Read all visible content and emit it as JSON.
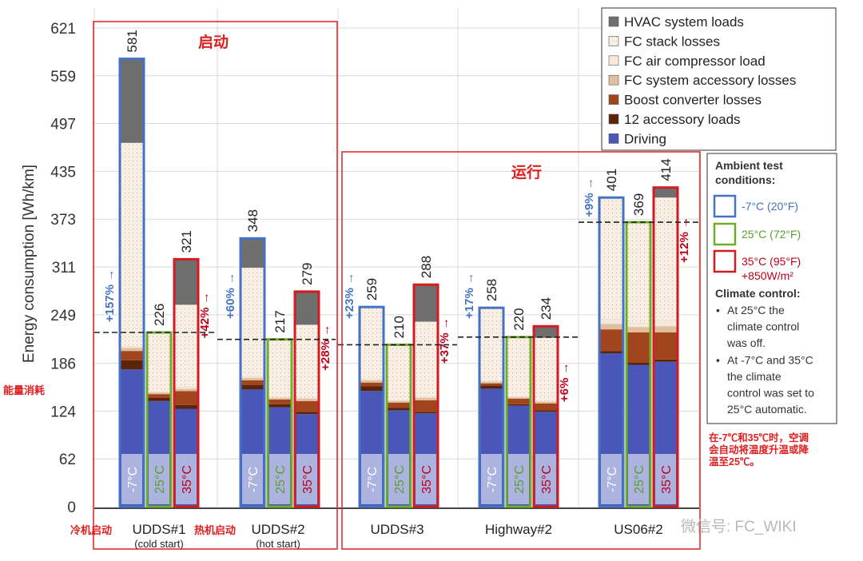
{
  "chart_data": {
    "type": "bar",
    "stacked": true,
    "ylabel": "Energy consumption [Wh/km]",
    "y_ticks": [
      0,
      62,
      124,
      186,
      249,
      311,
      373,
      435,
      497,
      559,
      621
    ],
    "ylim": [
      0,
      621
    ],
    "groups": [
      {
        "name": "UDDS#1",
        "sub": "(cold start)",
        "pre_label": "冷机启动"
      },
      {
        "name": "UDDS#2",
        "sub": "(hot start)",
        "pre_label": "热机启动"
      },
      {
        "name": "UDDS#3",
        "sub": "",
        "pre_label": ""
      },
      {
        "name": "Highway#2",
        "sub": "",
        "pre_label": ""
      },
      {
        "name": "US06#2",
        "sub": "",
        "pre_label": ""
      }
    ],
    "conditions": [
      {
        "key": "c",
        "tag": "-7°C",
        "border": "#4472c4",
        "tag_color": "#ffffff"
      },
      {
        "key": "w",
        "tag": "25°C",
        "border": "#70ad2b",
        "tag_color": "#5aa02c"
      },
      {
        "key": "h",
        "tag": "35°C",
        "border": "#d41b22",
        "tag_color": "#c0001b"
      }
    ],
    "series": [
      {
        "name": "Driving",
        "color": "#4a57b8"
      },
      {
        "name": "12 accessory loads",
        "color": "#5a2409"
      },
      {
        "name": "Boost converter losses",
        "color": "#a0451e"
      },
      {
        "name": "FC system accessory losses",
        "color": "#dfbf9e"
      },
      {
        "name": "FC air compressor load",
        "color": "#f6e9dc"
      },
      {
        "name": "FC stack losses",
        "color": "#f8efe6"
      },
      {
        "name": "HVAC system loads",
        "color": "#6e6e6e"
      }
    ],
    "bars": [
      {
        "group": 0,
        "cond": 0,
        "total": "581",
        "pct": "+157%",
        "values": [
          178,
          12,
          12,
          4,
          2,
          264,
          109
        ]
      },
      {
        "group": 0,
        "cond": 1,
        "total": "226",
        "pct": "",
        "values": [
          137,
          4,
          5,
          2,
          1,
          77,
          0
        ]
      },
      {
        "group": 0,
        "cond": 2,
        "total": "321",
        "pct": "+42%",
        "values": [
          127,
          5,
          18,
          3,
          2,
          107,
          59
        ]
      },
      {
        "group": 1,
        "cond": 0,
        "total": "348",
        "pct": "+60%",
        "values": [
          152,
          6,
          6,
          3,
          2,
          141,
          38
        ]
      },
      {
        "group": 1,
        "cond": 1,
        "total": "217",
        "pct": "",
        "values": [
          129,
          4,
          6,
          2,
          1,
          75,
          0
        ]
      },
      {
        "group": 1,
        "cond": 2,
        "total": "279",
        "pct": "+28%",
        "values": [
          120,
          3,
          14,
          3,
          1,
          95,
          43
        ]
      },
      {
        "group": 2,
        "cond": 0,
        "total": "259",
        "pct": "+23%",
        "values": [
          150,
          6,
          5,
          3,
          2,
          93,
          0
        ]
      },
      {
        "group": 2,
        "cond": 1,
        "total": "210",
        "pct": "",
        "values": [
          125,
          3,
          7,
          2,
          1,
          72,
          0
        ]
      },
      {
        "group": 2,
        "cond": 2,
        "total": "288",
        "pct": "+37%",
        "values": [
          121,
          2,
          15,
          3,
          1,
          98,
          48
        ]
      },
      {
        "group": 3,
        "cond": 0,
        "total": "258",
        "pct": "+17%",
        "values": [
          153,
          4,
          3,
          2,
          1,
          95,
          0
        ]
      },
      {
        "group": 3,
        "cond": 1,
        "total": "220",
        "pct": "",
        "values": [
          131,
          2,
          7,
          2,
          1,
          77,
          0
        ]
      },
      {
        "group": 3,
        "cond": 2,
        "total": "234",
        "pct": "+6%",
        "values": [
          123,
          2,
          9,
          2,
          1,
          82,
          15
        ]
      },
      {
        "group": 4,
        "cond": 0,
        "total": "401",
        "pct": "+9%",
        "values": [
          199,
          3,
          28,
          7,
          6,
          158,
          0
        ]
      },
      {
        "group": 4,
        "cond": 1,
        "total": "369",
        "pct": "",
        "values": [
          184,
          3,
          39,
          7,
          5,
          131,
          0
        ]
      },
      {
        "group": 4,
        "cond": 2,
        "total": "414",
        "pct": "+12%",
        "values": [
          188,
          3,
          35,
          8,
          8,
          159,
          13
        ]
      }
    ]
  },
  "annotations": {
    "startup_label": "启动",
    "running_label": "运行",
    "energy_label": "能量消耗",
    "note_cn": [
      "在-7℃和35℃时，空调",
      "会自动将温度升温或降",
      "温至25℃。"
    ],
    "watermark": "微信号: FC_WIKI"
  },
  "info_box": {
    "title_lines": [
      "Ambient test",
      "conditions:"
    ],
    "cond_labels": [
      {
        "lines": [
          "-7°C (20°F)"
        ],
        "color": "#4472c4"
      },
      {
        "lines": [
          "25°C (72°F)"
        ],
        "color": "#5aa02c"
      },
      {
        "lines": [
          "35°C (95°F)",
          "+850W/m²"
        ],
        "color": "#c0001b"
      }
    ],
    "climate_title": "Climate control:",
    "bullets": [
      [
        "At 25°C the",
        "climate control",
        "was off."
      ],
      [
        "At -7°C and 35°C",
        "the climate",
        "control was set to",
        "25°C automatic."
      ]
    ]
  },
  "colors": {
    "red_box": "#e02020",
    "grid": "#d9d9d9",
    "axis_text": "#333333"
  }
}
